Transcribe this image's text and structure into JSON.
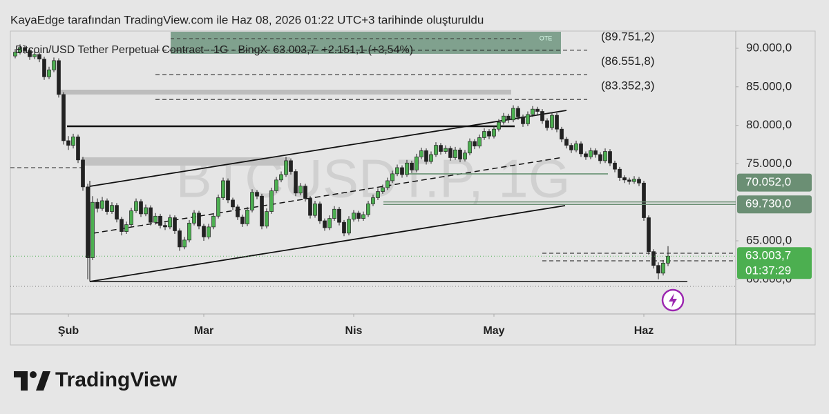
{
  "header": {
    "title": "KayaEdge tarafından TradingView.com ile Haz 08, 2026 01:22 UTC+3 tarihinde oluşturuldu",
    "symbol": "Bitcoin/USD Tether Perpetual Contract · 1G · BingX",
    "last": "63.003,7",
    "change": "+2.151,1 (+3,54%)",
    "watermark": "BTCUSDT.P, 1G",
    "zone_label": "OTE"
  },
  "chart_data": {
    "type": "candlestick",
    "up_color": "#4caf50",
    "down_color": "#222222",
    "grid": false,
    "categories": [
      null,
      null,
      null,
      null,
      null,
      null,
      null,
      null,
      null,
      null,
      null,
      null,
      null,
      null,
      null,
      null,
      null,
      null,
      null,
      null,
      null,
      null,
      null,
      null,
      null,
      null,
      null,
      null,
      null,
      null,
      null,
      null,
      null,
      null,
      null,
      null,
      null,
      null,
      null,
      null,
      null,
      null,
      null,
      null,
      null,
      null,
      null,
      null,
      null,
      null,
      null,
      null,
      null,
      null,
      null,
      null,
      null,
      null,
      null,
      null,
      null,
      null,
      null,
      null,
      null,
      null,
      null,
      null,
      null,
      null,
      null,
      null,
      null,
      null,
      null,
      null,
      null,
      null,
      null,
      null,
      null,
      null,
      null,
      null,
      null,
      null,
      null,
      null,
      null,
      null,
      null,
      null,
      null,
      null,
      null,
      null,
      null,
      null,
      null,
      null,
      null,
      null,
      null,
      null,
      null,
      null,
      null,
      null,
      null,
      null,
      null,
      null,
      null,
      null,
      null,
      null,
      null,
      null,
      null,
      null,
      null,
      null,
      null,
      null,
      null,
      null,
      null,
      null,
      null,
      null,
      null,
      null,
      null,
      null,
      null,
      null
    ],
    "ohlc": [
      [
        89000,
        89900,
        88700,
        89500
      ],
      [
        89500,
        90500,
        89200,
        90100
      ],
      [
        90100,
        90400,
        89300,
        89700
      ],
      [
        89700,
        90000,
        88500,
        88900
      ],
      [
        88900,
        89600,
        88600,
        89200
      ],
      [
        89200,
        89500,
        88200,
        88600
      ],
      [
        88600,
        88900,
        85900,
        86300
      ],
      [
        86300,
        87600,
        86000,
        87200
      ],
      [
        87200,
        88800,
        86900,
        88400
      ],
      [
        88400,
        88700,
        83600,
        84000
      ],
      [
        84000,
        84300,
        77500,
        78000
      ],
      [
        78000,
        78600,
        76800,
        77400
      ],
      [
        77400,
        78900,
        77000,
        78500
      ],
      [
        78500,
        78800,
        75100,
        75500
      ],
      [
        75500,
        75900,
        71500,
        72000
      ],
      [
        72000,
        72400,
        60000,
        62800
      ],
      [
        62800,
        70800,
        62500,
        70000
      ],
      [
        70000,
        70500,
        68700,
        69200
      ],
      [
        69200,
        70700,
        68900,
        70200
      ],
      [
        70200,
        70500,
        68400,
        68800
      ],
      [
        68800,
        70000,
        68500,
        69600
      ],
      [
        69600,
        69900,
        67400,
        67800
      ],
      [
        67800,
        68100,
        65700,
        66200
      ],
      [
        66200,
        67500,
        65900,
        67100
      ],
      [
        67100,
        69300,
        66800,
        68900
      ],
      [
        68900,
        70500,
        68600,
        70100
      ],
      [
        70100,
        70400,
        68100,
        68500
      ],
      [
        68500,
        69700,
        68200,
        69300
      ],
      [
        69300,
        69600,
        67000,
        67400
      ],
      [
        67400,
        68600,
        67100,
        68200
      ],
      [
        68200,
        68500,
        66600,
        67000
      ],
      [
        67000,
        67400,
        66400,
        66800
      ],
      [
        66800,
        68400,
        66500,
        68000
      ],
      [
        68000,
        68300,
        65900,
        66300
      ],
      [
        66300,
        66600,
        63700,
        64200
      ],
      [
        64200,
        65500,
        63900,
        65100
      ],
      [
        65100,
        67700,
        64800,
        67300
      ],
      [
        67300,
        69000,
        67000,
        68600
      ],
      [
        68600,
        68900,
        66500,
        66900
      ],
      [
        66900,
        67200,
        65000,
        65500
      ],
      [
        65500,
        67200,
        65200,
        66800
      ],
      [
        66800,
        68600,
        66500,
        68200
      ],
      [
        68200,
        71000,
        67900,
        70600
      ],
      [
        70600,
        73200,
        70300,
        72800
      ],
      [
        72800,
        73100,
        69900,
        70300
      ],
      [
        70300,
        70600,
        69000,
        69400
      ],
      [
        69400,
        69700,
        67700,
        68100
      ],
      [
        68100,
        68400,
        66800,
        67200
      ],
      [
        67200,
        69400,
        66900,
        69000
      ],
      [
        69000,
        71700,
        68700,
        71300
      ],
      [
        71300,
        71600,
        70400,
        70800
      ],
      [
        70800,
        71100,
        66500,
        66900
      ],
      [
        66900,
        69200,
        66600,
        68800
      ],
      [
        68800,
        71900,
        68500,
        71500
      ],
      [
        71500,
        73300,
        71200,
        72900
      ],
      [
        72900,
        74000,
        72600,
        73600
      ],
      [
        73600,
        75900,
        73300,
        75400
      ],
      [
        75400,
        75700,
        73600,
        74000
      ],
      [
        74000,
        74300,
        70800,
        71200
      ],
      [
        71200,
        72500,
        70900,
        72100
      ],
      [
        72100,
        72400,
        70100,
        70500
      ],
      [
        70500,
        70800,
        67900,
        68300
      ],
      [
        68300,
        70200,
        68000,
        69800
      ],
      [
        69800,
        70100,
        67200,
        67600
      ],
      [
        67600,
        67900,
        66300,
        66700
      ],
      [
        66700,
        68300,
        66400,
        67900
      ],
      [
        67900,
        69500,
        67600,
        69100
      ],
      [
        69100,
        69400,
        67000,
        67400
      ],
      [
        67400,
        67700,
        65600,
        66000
      ],
      [
        66000,
        68200,
        65700,
        67800
      ],
      [
        67800,
        69000,
        67500,
        68600
      ],
      [
        68600,
        68900,
        67500,
        67900
      ],
      [
        67900,
        68800,
        67600,
        68400
      ],
      [
        68400,
        70200,
        68100,
        69800
      ],
      [
        69800,
        71000,
        69500,
        70600
      ],
      [
        70600,
        71800,
        70300,
        71400
      ],
      [
        71400,
        72300,
        71100,
        71900
      ],
      [
        71900,
        73200,
        71600,
        72800
      ],
      [
        72800,
        74100,
        72500,
        73700
      ],
      [
        73700,
        74900,
        73400,
        74500
      ],
      [
        74500,
        74800,
        73200,
        73600
      ],
      [
        73600,
        75500,
        73300,
        75100
      ],
      [
        75100,
        75400,
        73800,
        74200
      ],
      [
        74200,
        76300,
        73900,
        75900
      ],
      [
        75900,
        77100,
        75600,
        76700
      ],
      [
        76700,
        77000,
        74900,
        75300
      ],
      [
        75300,
        76600,
        75000,
        76200
      ],
      [
        76200,
        77800,
        75900,
        77400
      ],
      [
        77400,
        77700,
        76200,
        76600
      ],
      [
        76600,
        77400,
        76300,
        77000
      ],
      [
        77000,
        77300,
        75400,
        75800
      ],
      [
        75800,
        77200,
        75500,
        76800
      ],
      [
        76800,
        77100,
        75200,
        75600
      ],
      [
        75600,
        76800,
        75300,
        76400
      ],
      [
        76400,
        78300,
        76100,
        77900
      ],
      [
        77900,
        78200,
        76900,
        77300
      ],
      [
        77300,
        78800,
        77000,
        78400
      ],
      [
        78400,
        79600,
        78100,
        79200
      ],
      [
        79200,
        79500,
        78200,
        78600
      ],
      [
        78600,
        79900,
        78300,
        79500
      ],
      [
        79500,
        80800,
        79200,
        80400
      ],
      [
        80400,
        81600,
        80100,
        81200
      ],
      [
        81200,
        81500,
        80300,
        80700
      ],
      [
        80700,
        82600,
        80400,
        82200
      ],
      [
        82200,
        82500,
        80700,
        81100
      ],
      [
        81100,
        81400,
        79800,
        80200
      ],
      [
        80200,
        81800,
        79900,
        81400
      ],
      [
        81400,
        82500,
        81100,
        82100
      ],
      [
        82100,
        82400,
        81400,
        81800
      ],
      [
        81800,
        82100,
        80200,
        80600
      ],
      [
        80600,
        80900,
        79300,
        79700
      ],
      [
        79700,
        81700,
        79400,
        81300
      ],
      [
        81300,
        81600,
        79100,
        79500
      ],
      [
        79500,
        79800,
        77800,
        78200
      ],
      [
        78200,
        78500,
        77000,
        77400
      ],
      [
        77400,
        77700,
        76400,
        76800
      ],
      [
        76800,
        78000,
        76500,
        77600
      ],
      [
        77600,
        77900,
        75900,
        76300
      ],
      [
        76300,
        76600,
        75500,
        75900
      ],
      [
        75900,
        77100,
        75600,
        76700
      ],
      [
        76700,
        77000,
        75800,
        76200
      ],
      [
        76200,
        76500,
        75000,
        75400
      ],
      [
        75400,
        77000,
        75100,
        76600
      ],
      [
        76600,
        76900,
        74700,
        75100
      ],
      [
        75100,
        75400,
        73900,
        74300
      ],
      [
        74300,
        74600,
        72800,
        73200
      ],
      [
        73200,
        73500,
        72500,
        72900
      ],
      [
        72900,
        73200,
        72300,
        72700
      ],
      [
        72700,
        73400,
        72400,
        73000
      ],
      [
        73000,
        73300,
        72100,
        72500
      ],
      [
        72500,
        72800,
        67600,
        68000
      ],
      [
        68000,
        68300,
        63200,
        63600
      ],
      [
        63600,
        63900,
        61400,
        61800
      ],
      [
        61800,
        62200,
        60000,
        60800
      ],
      [
        60800,
        62500,
        60500,
        62100
      ],
      [
        62100,
        64300,
        61700,
        63003.7
      ]
    ],
    "xlim": [
      -1,
      149
    ],
    "xticks": [
      {
        "value": 11,
        "label": "Şub"
      },
      {
        "value": 39,
        "label": "Mar"
      },
      {
        "value": 70,
        "label": "Nis"
      },
      {
        "value": 99,
        "label": "May"
      },
      {
        "value": 130,
        "label": "Haz"
      }
    ],
    "ylim": [
      55500,
      92240
    ],
    "yticks": [
      {
        "value": 90000,
        "label": "90.000,0"
      },
      {
        "value": 85000,
        "label": "85.000,0"
      },
      {
        "value": 80000,
        "label": "80.000,0"
      },
      {
        "value": 75000,
        "label": "75.000,0"
      },
      {
        "value": 65000,
        "label": "65.000,0"
      },
      {
        "value": 60000,
        "label": "60.000,0"
      }
    ],
    "levels": [
      {
        "value": 89751.2,
        "label": "(89.751,2)"
      },
      {
        "value": 86551.8,
        "label": "(86.551,8)"
      },
      {
        "value": 83352.3,
        "label": "(83.352,3)"
      }
    ],
    "price_tags": [
      {
        "value": 70052,
        "label": "70.052,0",
        "color": "#6b8f74"
      },
      {
        "value": 69730,
        "label": "69.730,0",
        "color": "#6b8f74"
      }
    ],
    "last_price": {
      "value": 63003.7,
      "label": "63.003,7",
      "countdown": "01:37:29",
      "color": "#4caf50"
    }
  },
  "footer": {
    "brand": "TradingView"
  }
}
